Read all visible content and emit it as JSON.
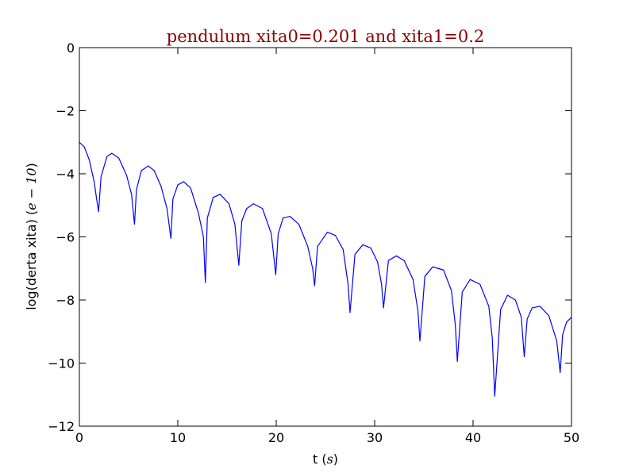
{
  "chart_data": {
    "type": "line",
    "title": "pendulum xita0=0.201 and xita1=0.2",
    "title_color": "#8b0000",
    "xlabel": "t",
    "xlabel_unit": "s",
    "ylabel": "log(derta xita)",
    "ylabel_unit": "e − 10",
    "xlim": [
      0,
      50
    ],
    "ylim": [
      -12,
      0
    ],
    "xticks": [
      0,
      10,
      20,
      30,
      40,
      50
    ],
    "yticks": [
      0,
      -2,
      -4,
      -6,
      -8,
      -10,
      -12
    ],
    "xtick_labels": [
      "0",
      "10",
      "20",
      "30",
      "40",
      "50"
    ],
    "ytick_labels": [
      "0",
      "−2",
      "−4",
      "−6",
      "−8",
      "−10",
      "−12"
    ],
    "grid": false,
    "series": [
      {
        "color": "#0000ff",
        "x": [
          0.0,
          0.5,
          1.0,
          1.5,
          1.8,
          1.95,
          2.2,
          2.8,
          3.3,
          4.0,
          4.8,
          5.3,
          5.6,
          5.8,
          6.3,
          7.0,
          7.6,
          8.3,
          8.9,
          9.3,
          9.5,
          10.0,
          10.6,
          11.3,
          12.1,
          12.6,
          12.8,
          13.0,
          13.6,
          14.3,
          15.2,
          15.8,
          16.2,
          16.5,
          17.0,
          17.7,
          18.6,
          19.5,
          19.95,
          20.2,
          20.7,
          21.4,
          22.3,
          23.2,
          23.7,
          23.9,
          24.2,
          25.2,
          26.0,
          26.8,
          27.3,
          27.5,
          28.0,
          28.8,
          29.6,
          30.3,
          30.7,
          30.9,
          31.4,
          32.2,
          33.0,
          33.9,
          34.4,
          34.6,
          35.1,
          35.9,
          37.0,
          37.8,
          38.2,
          38.4,
          38.9,
          39.7,
          40.7,
          41.6,
          41.95,
          42.2,
          42.8,
          43.5,
          44.3,
          44.9,
          45.2,
          45.5,
          46.0,
          46.8,
          47.7,
          48.5,
          48.85,
          49.1,
          49.5,
          50.0
        ],
        "y": [
          -3.0,
          -3.15,
          -3.55,
          -4.25,
          -4.9,
          -5.2,
          -4.1,
          -3.45,
          -3.35,
          -3.5,
          -4.05,
          -4.65,
          -5.6,
          -4.5,
          -3.9,
          -3.75,
          -3.9,
          -4.4,
          -5.1,
          -6.05,
          -4.8,
          -4.35,
          -4.25,
          -4.45,
          -5.25,
          -6.0,
          -7.45,
          -5.4,
          -4.75,
          -4.65,
          -4.95,
          -5.6,
          -6.9,
          -5.5,
          -5.1,
          -4.95,
          -5.1,
          -5.9,
          -7.2,
          -5.9,
          -5.4,
          -5.35,
          -5.6,
          -6.3,
          -7.0,
          -7.55,
          -6.3,
          -5.85,
          -5.95,
          -6.4,
          -7.5,
          -8.4,
          -6.55,
          -6.25,
          -6.35,
          -6.8,
          -7.5,
          -8.25,
          -6.75,
          -6.6,
          -6.75,
          -7.35,
          -8.35,
          -9.3,
          -7.25,
          -6.95,
          -7.05,
          -7.7,
          -8.8,
          -9.95,
          -7.75,
          -7.35,
          -7.5,
          -8.2,
          -9.2,
          -11.05,
          -8.3,
          -7.85,
          -8.0,
          -8.55,
          -9.8,
          -8.6,
          -8.25,
          -8.2,
          -8.5,
          -9.3,
          -10.3,
          -9.1,
          -8.7,
          -8.55
        ]
      }
    ]
  }
}
